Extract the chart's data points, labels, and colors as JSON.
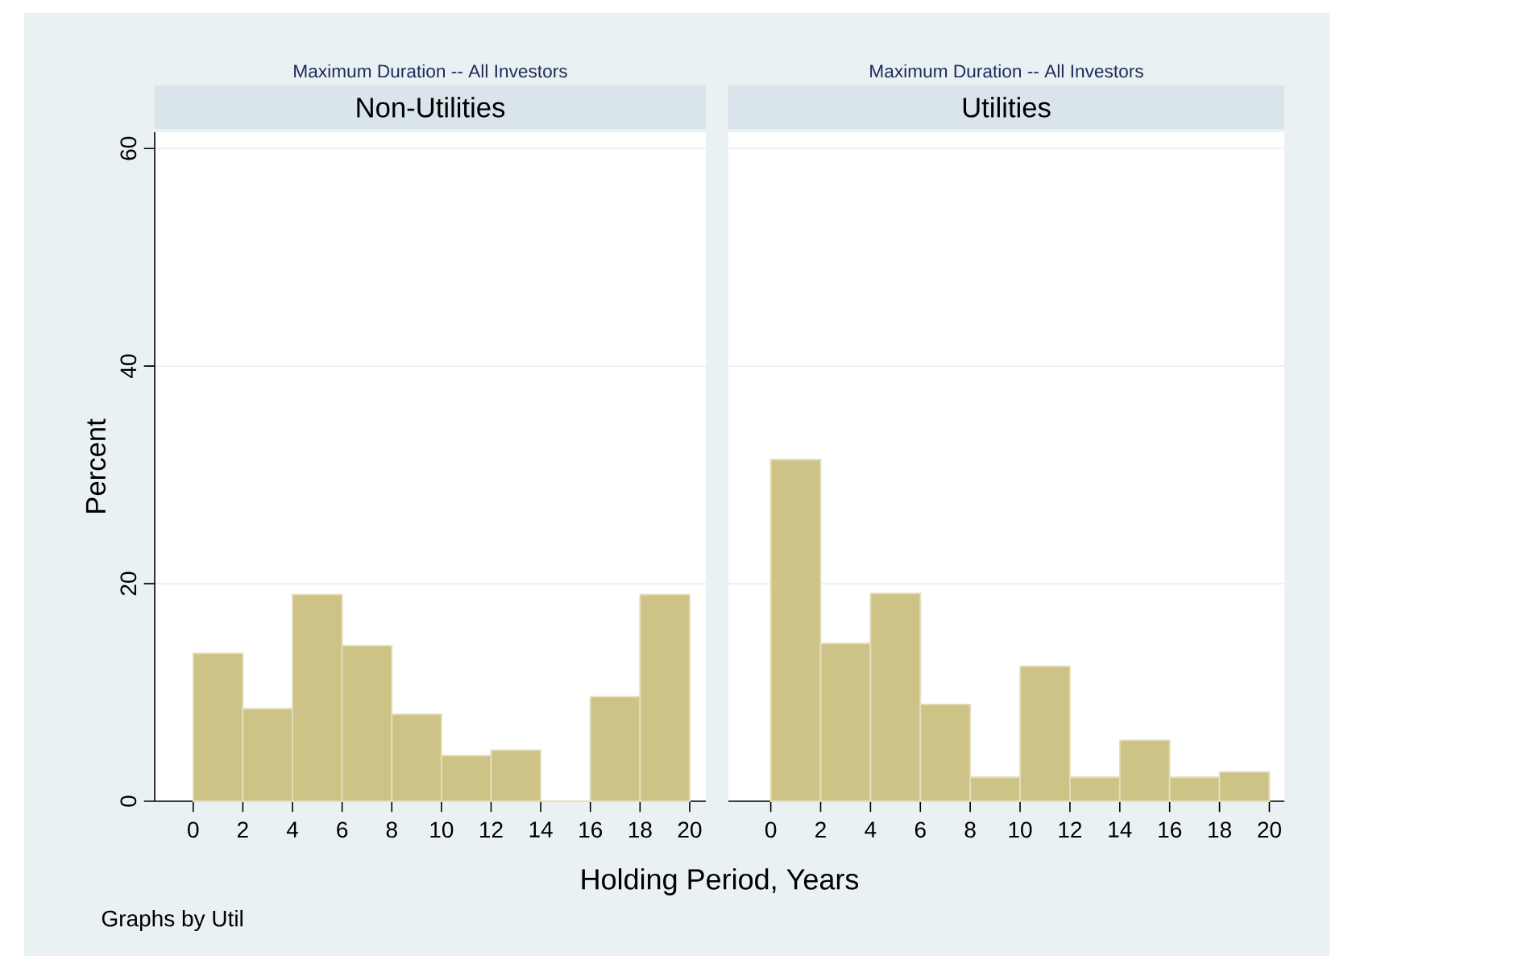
{
  "chart_data": [
    {
      "type": "histogram",
      "subtitle": "Maximum Duration -- All Investors",
      "title": "Non-Utilities",
      "xlabel": "Holding Period, Years",
      "ylabel": "Percent",
      "annotations": [
        "Graphs by Util"
      ],
      "bins": [
        0,
        2,
        4,
        6,
        8,
        10,
        12,
        14,
        16,
        18,
        20
      ],
      "values": [
        13.6,
        8.5,
        19.0,
        14.3,
        8.0,
        4.2,
        4.7,
        0,
        9.6,
        19.0
      ],
      "color": "#cdc386",
      "xlim": [
        -1.55,
        20.65
      ],
      "ylim": [
        0,
        61.5
      ],
      "xticks": [
        0,
        2,
        4,
        6,
        8,
        10,
        12,
        14,
        16,
        18,
        20
      ],
      "yticks": [
        0,
        20,
        40,
        60
      ],
      "grid": "y"
    },
    {
      "type": "histogram",
      "subtitle": "Maximum Duration -- All Investors",
      "title": "Utilities",
      "bins": [
        0,
        2,
        4,
        6,
        8,
        10,
        12,
        14,
        16,
        18,
        20
      ],
      "values": [
        31.4,
        14.5,
        19.1,
        8.9,
        2.2,
        12.4,
        2.2,
        5.6,
        2.2,
        2.7
      ],
      "color": "#cdc386",
      "xlim": [
        -1.7,
        20.6
      ],
      "ylim": [
        0,
        61.5
      ],
      "xticks": [
        0,
        2,
        4,
        6,
        8,
        10,
        12,
        14,
        16,
        18,
        20
      ],
      "yticks": [
        0,
        20,
        40,
        60
      ],
      "grid": "y",
      "tick_labels": "x"
    }
  ]
}
